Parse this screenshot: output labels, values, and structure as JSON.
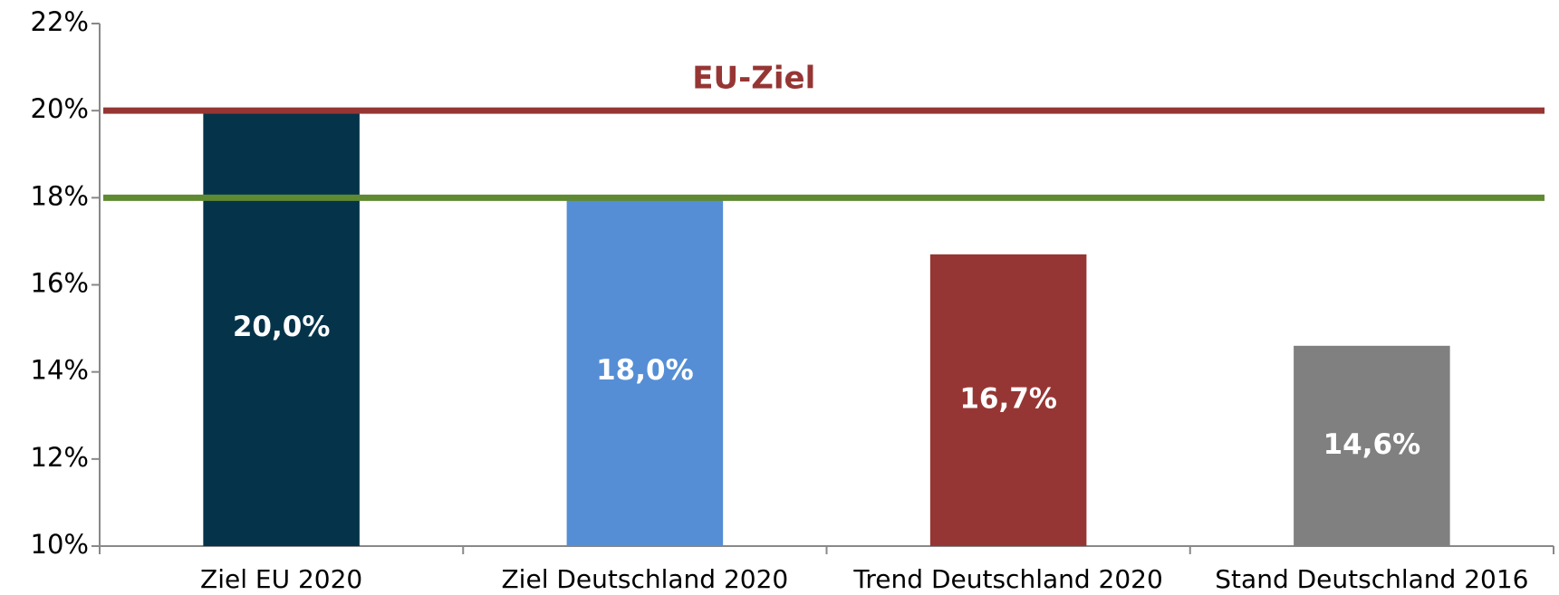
{
  "chart_data": {
    "type": "bar",
    "categories": [
      "Ziel EU 2020",
      "Ziel Deutschland 2020",
      "Trend Deutschland 2020",
      "Stand Deutschland 2016"
    ],
    "values": [
      20,
      18,
      16.7,
      14.6
    ],
    "value_labels": [
      "20,0%",
      "18,0%",
      "16,7%",
      "14,6%"
    ],
    "colors": [
      "#05344a",
      "#558ed5",
      "#963634",
      "#808080"
    ],
    "ylim": [
      10,
      22
    ],
    "yticks": [
      {
        "value": 10,
        "label": "10%"
      },
      {
        "value": 12,
        "label": "12%"
      },
      {
        "value": 14,
        "label": "14%"
      },
      {
        "value": 16,
        "label": "16%"
      },
      {
        "value": 18,
        "label": "18%"
      },
      {
        "value": 20,
        "label": "20%"
      },
      {
        "value": 22,
        "label": "22%"
      }
    ],
    "reference_lines": [
      {
        "value": 20,
        "label": "EU-Ziel",
        "color": "#963634"
      },
      {
        "value": 18,
        "color": "#5f8a32"
      }
    ]
  }
}
